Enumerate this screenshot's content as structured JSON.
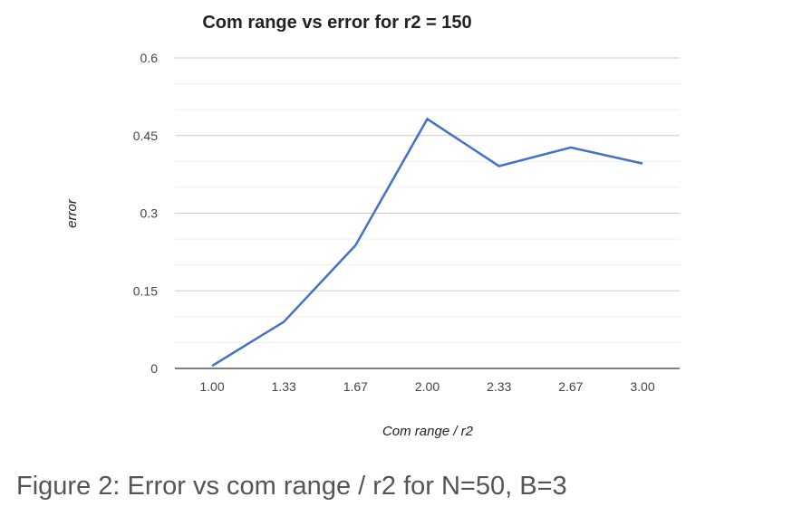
{
  "figure_caption": "Figure 2: Error vs com range / r2 for N=50, B=3",
  "chart_data": {
    "type": "line",
    "title": "Com range vs error for r2 = 150",
    "xlabel": "Com range / r2",
    "ylabel": "error",
    "categories": [
      "1.00",
      "1.33",
      "1.67",
      "2.00",
      "2.33",
      "2.67",
      "3.00"
    ],
    "y_ticks": [
      "0",
      "0.15",
      "0.3",
      "0.45",
      "0.6"
    ],
    "ylim": [
      0,
      0.6
    ],
    "grid": true,
    "series": [
      {
        "values": [
          0.005,
          0.09,
          0.238,
          0.482,
          0.391,
          0.427,
          0.396
        ],
        "color": "#4472c4"
      }
    ]
  }
}
